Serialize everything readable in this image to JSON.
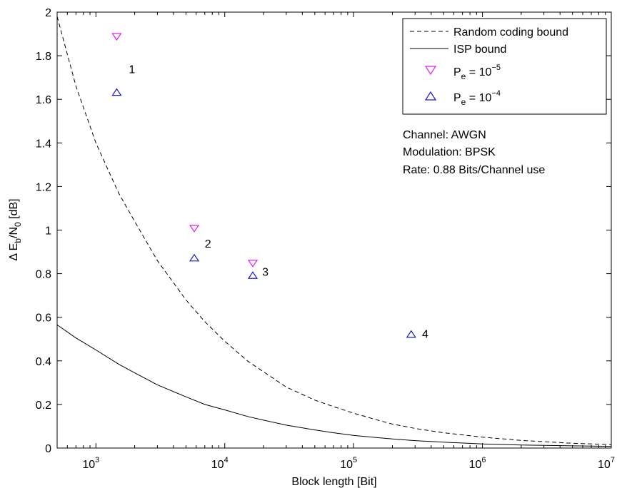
{
  "chart_data": {
    "type": "scatter",
    "xlabel": "Block length [Bit]",
    "ylabel": {
      "base": "Δ E",
      "sub1": "b",
      "mid": "/N",
      "sub2": "0",
      "tail": " [dB]"
    },
    "xscale": "log",
    "xlim": [
      500,
      10000000
    ],
    "ylim": [
      0,
      2
    ],
    "x_ticks": [
      {
        "value": 1000,
        "base": "10",
        "exp": "3"
      },
      {
        "value": 10000,
        "base": "10",
        "exp": "4"
      },
      {
        "value": 100000,
        "base": "10",
        "exp": "5"
      },
      {
        "value": 1000000,
        "base": "10",
        "exp": "6"
      },
      {
        "value": 10000000,
        "base": "10",
        "exp": "7"
      }
    ],
    "y_ticks": [
      {
        "value": 0,
        "label": "0"
      },
      {
        "value": 0.2,
        "label": "0.2"
      },
      {
        "value": 0.4,
        "label": "0.4"
      },
      {
        "value": 0.6,
        "label": "0.6"
      },
      {
        "value": 0.8,
        "label": "0.8"
      },
      {
        "value": 1,
        "label": "1"
      },
      {
        "value": 1.2,
        "label": "1.2"
      },
      {
        "value": 1.4,
        "label": "1.4"
      },
      {
        "value": 1.6,
        "label": "1.6"
      },
      {
        "value": 1.8,
        "label": "1.8"
      },
      {
        "value": 2,
        "label": "2"
      }
    ],
    "grid": false,
    "legend_position": "top-right",
    "curves": [
      {
        "name": "Random coding bound",
        "style": "dashed",
        "color": "#000000",
        "x": [
          500,
          700,
          1000,
          1500,
          2000,
          3000,
          5000,
          7000,
          10000,
          15000,
          20000,
          30000,
          50000,
          70000,
          100000,
          150000,
          200000,
          300000,
          500000,
          1000000,
          2000000,
          5000000,
          10000000
        ],
        "y": [
          1.98,
          1.66,
          1.4,
          1.17,
          1.04,
          0.86,
          0.68,
          0.58,
          0.49,
          0.4,
          0.35,
          0.28,
          0.22,
          0.19,
          0.16,
          0.13,
          0.11,
          0.09,
          0.07,
          0.05,
          0.035,
          0.022,
          0.016
        ]
      },
      {
        "name": "ISP bound",
        "style": "solid",
        "color": "#000000",
        "x": [
          500,
          700,
          1000,
          1500,
          2000,
          3000,
          5000,
          7000,
          10000,
          15000,
          20000,
          30000,
          50000,
          70000,
          100000,
          150000,
          200000,
          300000,
          500000,
          1000000,
          2000000,
          5000000,
          10000000
        ],
        "y": [
          0.565,
          0.505,
          0.45,
          0.385,
          0.345,
          0.29,
          0.235,
          0.2,
          0.175,
          0.145,
          0.128,
          0.105,
          0.083,
          0.07,
          0.058,
          0.048,
          0.042,
          0.034,
          0.027,
          0.019,
          0.014,
          0.01,
          0.008
        ]
      }
    ],
    "series": [
      {
        "name": "P_e = 10^-5",
        "legend": {
          "p": "P",
          "sub": "e",
          "eq": " = 10",
          "exp": "−5"
        },
        "marker": "triangle-down",
        "color": "#e020e0",
        "x": [
          1450,
          5800,
          16500
        ],
        "y": [
          1.89,
          1.01,
          0.85
        ]
      },
      {
        "name": "P_e = 10^-4",
        "legend": {
          "p": "P",
          "sub": "e",
          "eq": " = 10",
          "exp": "−4"
        },
        "marker": "triangle-up",
        "color": "#1a1acc",
        "x": [
          1450,
          5800,
          16500,
          280000
        ],
        "y": [
          1.63,
          0.87,
          0.79,
          0.52
        ]
      }
    ],
    "point_labels": [
      {
        "text": "1",
        "x": 1800,
        "y": 1.74
      },
      {
        "text": "2",
        "x": 7000,
        "y": 0.94
      },
      {
        "text": "3",
        "x": 19500,
        "y": 0.81
      },
      {
        "text": "4",
        "x": 340000,
        "y": 0.525
      }
    ],
    "annotations": [
      "Channel: AWGN",
      "Modulation: BPSK",
      "Rate: 0.88 Bits/Channel use"
    ]
  }
}
